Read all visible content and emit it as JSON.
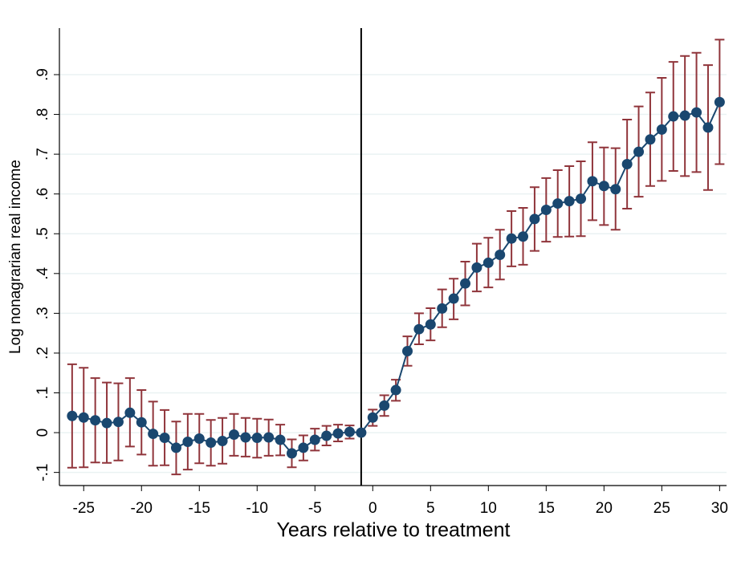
{
  "chart_data": {
    "type": "errorbar-line",
    "x_label": "Years relative to treatment",
    "y_label": "Log nonagrarian real income",
    "x": [
      -26,
      -25,
      -24,
      -23,
      -22,
      -21,
      -20,
      -19,
      -18,
      -17,
      -16,
      -15,
      -14,
      -13,
      -12,
      -11,
      -10,
      -9,
      -8,
      -7,
      -6,
      -5,
      -4,
      -3,
      -2,
      -1,
      0,
      1,
      2,
      3,
      4,
      5,
      6,
      7,
      8,
      9,
      10,
      11,
      12,
      13,
      14,
      15,
      16,
      17,
      18,
      19,
      20,
      21,
      22,
      23,
      24,
      25,
      26,
      27,
      28,
      29,
      30
    ],
    "series": [
      {
        "color": "#1a476f",
        "error_color": "#90353b",
        "values": [
          0.042,
          0.038,
          0.031,
          0.024,
          0.027,
          0.05,
          0.026,
          -0.003,
          -0.013,
          -0.038,
          -0.023,
          -0.015,
          -0.025,
          -0.021,
          -0.005,
          -0.012,
          -0.013,
          -0.012,
          -0.018,
          -0.052,
          -0.038,
          -0.018,
          -0.008,
          -0.002,
          0.002,
          0,
          0.038,
          0.068,
          0.107,
          0.205,
          0.26,
          0.272,
          0.312,
          0.337,
          0.375,
          0.415,
          0.427,
          0.447,
          0.488,
          0.493,
          0.537,
          0.56,
          0.576,
          0.582,
          0.588,
          0.632,
          0.62,
          0.612,
          0.675,
          0.706,
          0.737,
          0.762,
          0.795,
          0.797,
          0.805,
          0.767,
          0.831
        ],
        "lower": [
          -0.088,
          -0.087,
          -0.075,
          -0.076,
          -0.07,
          -0.035,
          -0.055,
          -0.083,
          -0.082,
          -0.105,
          -0.093,
          -0.077,
          -0.083,
          -0.078,
          -0.058,
          -0.06,
          -0.063,
          -0.058,
          -0.057,
          -0.087,
          -0.07,
          -0.045,
          -0.032,
          -0.022,
          -0.015,
          null,
          0.017,
          0.042,
          0.08,
          0.168,
          0.222,
          0.232,
          0.265,
          0.285,
          0.32,
          0.355,
          0.365,
          0.385,
          0.418,
          0.422,
          0.457,
          0.48,
          0.492,
          0.493,
          0.494,
          0.534,
          0.522,
          0.51,
          0.563,
          0.593,
          0.62,
          0.633,
          0.658,
          0.645,
          0.655,
          0.61,
          0.675
        ],
        "upper": [
          0.172,
          0.163,
          0.137,
          0.126,
          0.124,
          0.137,
          0.107,
          0.078,
          0.057,
          0.028,
          0.047,
          0.047,
          0.032,
          0.037,
          0.047,
          0.037,
          0.035,
          0.033,
          0.02,
          -0.017,
          -0.007,
          0.01,
          0.017,
          0.02,
          0.018,
          null,
          0.058,
          0.094,
          0.133,
          0.242,
          0.3,
          0.313,
          0.36,
          0.387,
          0.43,
          0.475,
          0.49,
          0.51,
          0.557,
          0.565,
          0.617,
          0.64,
          0.66,
          0.67,
          0.682,
          0.73,
          0.717,
          0.715,
          0.787,
          0.82,
          0.855,
          0.892,
          0.932,
          0.947,
          0.955,
          0.924,
          0.988
        ]
      }
    ],
    "reference_line_x": -1,
    "reference_color": "#000000",
    "xlim": [
      -27.1,
      30.6
    ],
    "ylim": [
      -0.133,
      1.017
    ],
    "xticks": [
      -25,
      -20,
      -15,
      -10,
      -5,
      0,
      5,
      10,
      15,
      20,
      25,
      30
    ],
    "yticks": [
      {
        "value": -0.1,
        "label": "-.1"
      },
      0,
      {
        "value": 0.1,
        "label": ".1"
      },
      {
        "value": 0.2,
        "label": ".2"
      },
      {
        "value": 0.3,
        "label": ".3"
      },
      {
        "value": 0.4,
        "label": ".4"
      },
      {
        "value": 0.5,
        "label": ".5"
      },
      {
        "value": 0.6,
        "label": ".6"
      },
      {
        "value": 0.7,
        "label": ".7"
      },
      {
        "value": 0.8,
        "label": ".8"
      },
      {
        "value": 0.9,
        "label": ".9"
      }
    ],
    "grid": true
  }
}
